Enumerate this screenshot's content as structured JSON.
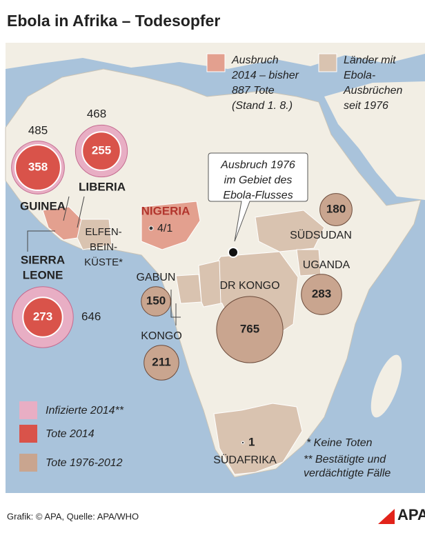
{
  "header": {
    "title": "Ebola in Afrika – Todesopfer"
  },
  "legend_top": [
    {
      "lines": [
        "Ausbruch",
        "2014 – bisher",
        "887 Tote",
        "(Stand 1. 8.)"
      ]
    },
    {
      "lines": [
        "Länder mit",
        "Ebola-",
        "Ausbrüchen",
        "seit 1976"
      ]
    }
  ],
  "outbreaks_2014": [
    {
      "country": [
        "GUINEA"
      ],
      "infected": "485",
      "deaths": "358"
    },
    {
      "country": [
        "LIBERIA"
      ],
      "infected": "468",
      "deaths": "255"
    },
    {
      "country": [
        "SIERRA",
        "LEONE"
      ],
      "infected": "646",
      "deaths": "273"
    }
  ],
  "nigeria": {
    "country": "NIGERIA",
    "cases": "4/1"
  },
  "ivory_coast": {
    "lines": [
      "ELFEN-",
      "BEIN-",
      "KÜSTE*"
    ]
  },
  "annotation": {
    "lines": [
      "Ausbruch 1976",
      "im Gebiet des",
      "Ebola-Flusses"
    ]
  },
  "historic": [
    {
      "country": "SÜDSUDAN",
      "deaths": "180"
    },
    {
      "country": "UGANDA",
      "deaths": "283"
    },
    {
      "country": "DR KONGO",
      "deaths": "765"
    },
    {
      "country": "GABUN",
      "deaths": "150"
    },
    {
      "country": "KONGO",
      "deaths": "211"
    },
    {
      "country": "SÜDAFRIKA",
      "deaths": "1"
    }
  ],
  "legend_bottom": [
    "Infizierte 2014**",
    "Tote 2014",
    "Tote 1976-2012"
  ],
  "footnotes": [
    {
      "lines": [
        "*  Keine Toten"
      ]
    },
    {
      "lines": [
        "** Bestätigte und",
        "verdächtigte Fälle"
      ]
    }
  ],
  "footer": {
    "source": "Grafik: © APA, Quelle: APA/WHO",
    "logo": "APA"
  }
}
